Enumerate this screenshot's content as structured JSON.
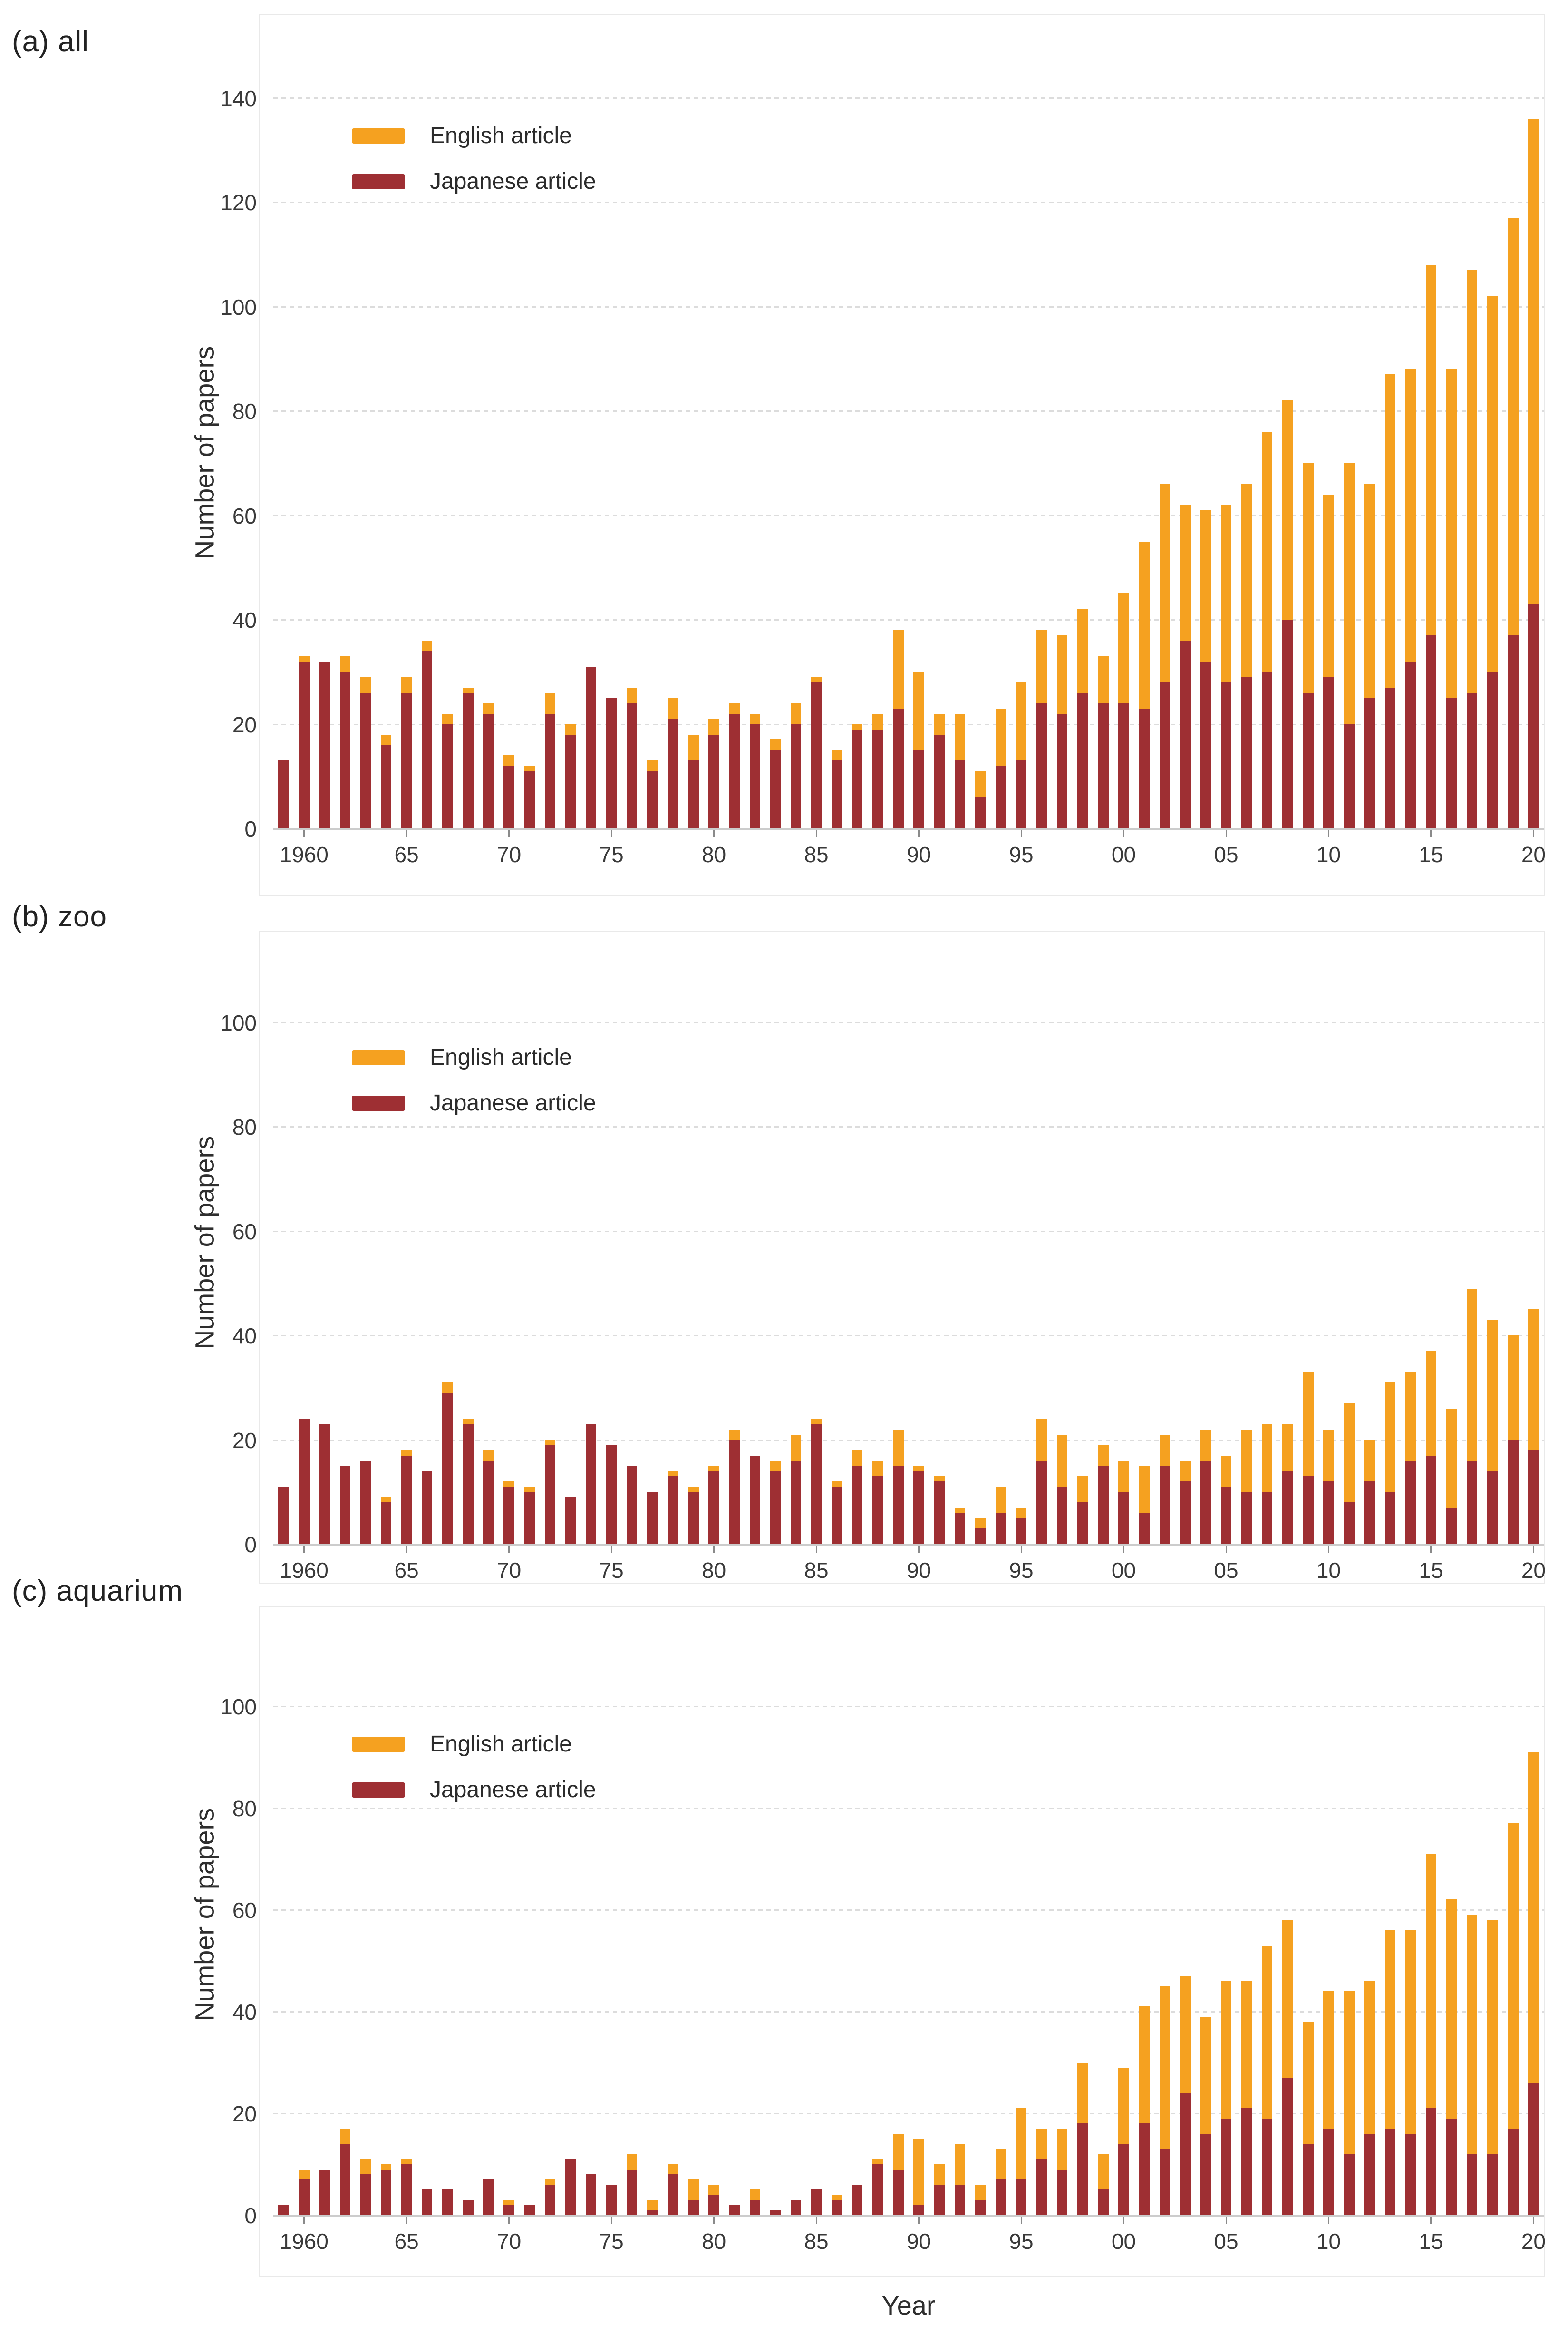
{
  "legend": {
    "english_label": "English article",
    "japanese_label": "Japanese article"
  },
  "colors": {
    "english": "#F5A120",
    "japanese": "#9E2F33",
    "grid": "#DCDCDC",
    "axis_line": "#CCCCCC",
    "text": "#333333"
  },
  "x_axis": {
    "title": "Year",
    "tick_years": [
      1960,
      1965,
      1970,
      1975,
      1980,
      1985,
      1990,
      1995,
      2000,
      2005,
      2010,
      2015,
      2020
    ],
    "tick_labels": [
      "1960",
      "65",
      "70",
      "75",
      "80",
      "85",
      "90",
      "95",
      "00",
      "05",
      "10",
      "15",
      "20"
    ]
  },
  "chart_data": [
    {
      "id": "a",
      "type": "bar",
      "stacked": true,
      "title": "(a) all",
      "xlabel": "Year",
      "ylabel": "Number of papers",
      "ylim": [
        0,
        144
      ],
      "yticks": [
        0,
        20,
        40,
        60,
        80,
        100,
        120,
        140
      ],
      "grid": "horizontal-dashed",
      "legend_position": "top-left",
      "x": [
        1959,
        1960,
        1961,
        1962,
        1963,
        1964,
        1965,
        1966,
        1967,
        1968,
        1969,
        1970,
        1971,
        1972,
        1973,
        1974,
        1975,
        1976,
        1977,
        1978,
        1979,
        1980,
        1981,
        1982,
        1983,
        1984,
        1985,
        1986,
        1987,
        1988,
        1989,
        1990,
        1991,
        1992,
        1993,
        1994,
        1995,
        1996,
        1997,
        1998,
        1999,
        2000,
        2001,
        2002,
        2003,
        2004,
        2005,
        2006,
        2007,
        2008,
        2009,
        2010,
        2011,
        2012,
        2013,
        2014,
        2015,
        2016,
        2017,
        2018,
        2019,
        2020
      ],
      "series": [
        {
          "name": "Japanese article",
          "values": [
            13,
            32,
            32,
            30,
            26,
            16,
            26,
            34,
            20,
            26,
            22,
            12,
            11,
            22,
            18,
            31,
            25,
            24,
            11,
            21,
            13,
            18,
            22,
            20,
            15,
            20,
            28,
            13,
            19,
            19,
            23,
            15,
            18,
            13,
            6,
            12,
            13,
            24,
            22,
            26,
            24,
            24,
            23,
            28,
            36,
            32,
            28,
            29,
            30,
            40,
            26,
            29,
            20,
            25,
            27,
            32,
            37,
            25,
            26,
            30,
            37,
            43
          ]
        },
        {
          "name": "English article",
          "values": [
            0,
            1,
            0,
            3,
            3,
            2,
            3,
            2,
            2,
            1,
            2,
            2,
            1,
            4,
            2,
            0,
            0,
            3,
            2,
            4,
            5,
            3,
            2,
            2,
            2,
            4,
            1,
            2,
            1,
            3,
            15,
            15,
            4,
            9,
            5,
            11,
            15,
            14,
            15,
            16,
            9,
            21,
            32,
            38,
            26,
            29,
            34,
            37,
            46,
            42,
            44,
            35,
            50,
            41,
            60,
            56,
            71,
            63,
            81,
            72,
            80,
            93
          ]
        }
      ]
    },
    {
      "id": "b",
      "type": "bar",
      "stacked": true,
      "title": "(b) zoo",
      "xlabel": "Year",
      "ylabel": "Number of papers",
      "ylim": [
        0,
        115.5
      ],
      "yticks": [
        0,
        20,
        40,
        60,
        80,
        100
      ],
      "grid": "horizontal-dashed",
      "legend_position": "top-left",
      "x": [
        1959,
        1960,
        1961,
        1962,
        1963,
        1964,
        1965,
        1966,
        1967,
        1968,
        1969,
        1970,
        1971,
        1972,
        1973,
        1974,
        1975,
        1976,
        1977,
        1978,
        1979,
        1980,
        1981,
        1982,
        1983,
        1984,
        1985,
        1986,
        1987,
        1988,
        1989,
        1990,
        1991,
        1992,
        1993,
        1994,
        1995,
        1996,
        1997,
        1998,
        1999,
        2000,
        2001,
        2002,
        2003,
        2004,
        2005,
        2006,
        2007,
        2008,
        2009,
        2010,
        2011,
        2012,
        2013,
        2014,
        2015,
        2016,
        2017,
        2018,
        2019,
        2020
      ],
      "series": [
        {
          "name": "Japanese article",
          "values": [
            11,
            24,
            23,
            15,
            16,
            8,
            17,
            14,
            29,
            23,
            16,
            11,
            10,
            19,
            9,
            23,
            19,
            15,
            10,
            13,
            10,
            14,
            20,
            17,
            14,
            16,
            23,
            11,
            15,
            13,
            15,
            14,
            12,
            6,
            3,
            6,
            5,
            16,
            11,
            8,
            15,
            10,
            6,
            15,
            12,
            16,
            11,
            10,
            10,
            14,
            13,
            12,
            8,
            12,
            10,
            16,
            17,
            7,
            16,
            14,
            20,
            18
          ]
        },
        {
          "name": "English article",
          "values": [
            0,
            0,
            0,
            0,
            0,
            1,
            1,
            0,
            2,
            1,
            2,
            1,
            1,
            1,
            0,
            0,
            0,
            0,
            0,
            1,
            1,
            1,
            2,
            0,
            2,
            5,
            1,
            1,
            3,
            3,
            7,
            1,
            1,
            1,
            2,
            5,
            2,
            8,
            10,
            5,
            4,
            6,
            9,
            6,
            4,
            6,
            6,
            12,
            13,
            9,
            20,
            10,
            19,
            8,
            21,
            17,
            20,
            19,
            33,
            29,
            20,
            27
          ]
        }
      ]
    },
    {
      "id": "c",
      "type": "bar",
      "stacked": true,
      "title": "(c) aquarium",
      "xlabel": "Year",
      "ylabel": "Number of papers",
      "ylim": [
        0,
        118
      ],
      "yticks": [
        0,
        20,
        40,
        60,
        80,
        100
      ],
      "grid": "horizontal-dashed",
      "legend_position": "top-left",
      "x": [
        1959,
        1960,
        1961,
        1962,
        1963,
        1964,
        1965,
        1966,
        1967,
        1968,
        1969,
        1970,
        1971,
        1972,
        1973,
        1974,
        1975,
        1976,
        1977,
        1978,
        1979,
        1980,
        1981,
        1982,
        1983,
        1984,
        1985,
        1986,
        1987,
        1988,
        1989,
        1990,
        1991,
        1992,
        1993,
        1994,
        1995,
        1996,
        1997,
        1998,
        1999,
        2000,
        2001,
        2002,
        2003,
        2004,
        2005,
        2006,
        2007,
        2008,
        2009,
        2010,
        2011,
        2012,
        2013,
        2014,
        2015,
        2016,
        2017,
        2018,
        2019,
        2020
      ],
      "series": [
        {
          "name": "Japanese article",
          "values": [
            2,
            7,
            9,
            14,
            8,
            9,
            10,
            5,
            5,
            3,
            7,
            2,
            2,
            6,
            11,
            8,
            6,
            9,
            1,
            8,
            3,
            4,
            2,
            3,
            1,
            3,
            5,
            3,
            6,
            10,
            9,
            2,
            6,
            6,
            3,
            7,
            7,
            11,
            9,
            18,
            5,
            14,
            18,
            13,
            24,
            16,
            19,
            21,
            19,
            27,
            14,
            17,
            12,
            16,
            17,
            16,
            21,
            19,
            12,
            12,
            17,
            26
          ]
        },
        {
          "name": "English article",
          "values": [
            0,
            2,
            0,
            3,
            3,
            1,
            1,
            0,
            0,
            0,
            0,
            1,
            0,
            1,
            0,
            0,
            0,
            3,
            2,
            2,
            4,
            2,
            0,
            2,
            0,
            0,
            0,
            1,
            0,
            1,
            7,
            13,
            4,
            8,
            3,
            6,
            14,
            6,
            8,
            12,
            7,
            15,
            23,
            32,
            23,
            23,
            27,
            25,
            34,
            31,
            24,
            27,
            32,
            30,
            39,
            40,
            50,
            43,
            47,
            46,
            60,
            65
          ]
        }
      ]
    }
  ],
  "layout_note": "Three vertically stacked bar charts of papers per year 1959-2020"
}
